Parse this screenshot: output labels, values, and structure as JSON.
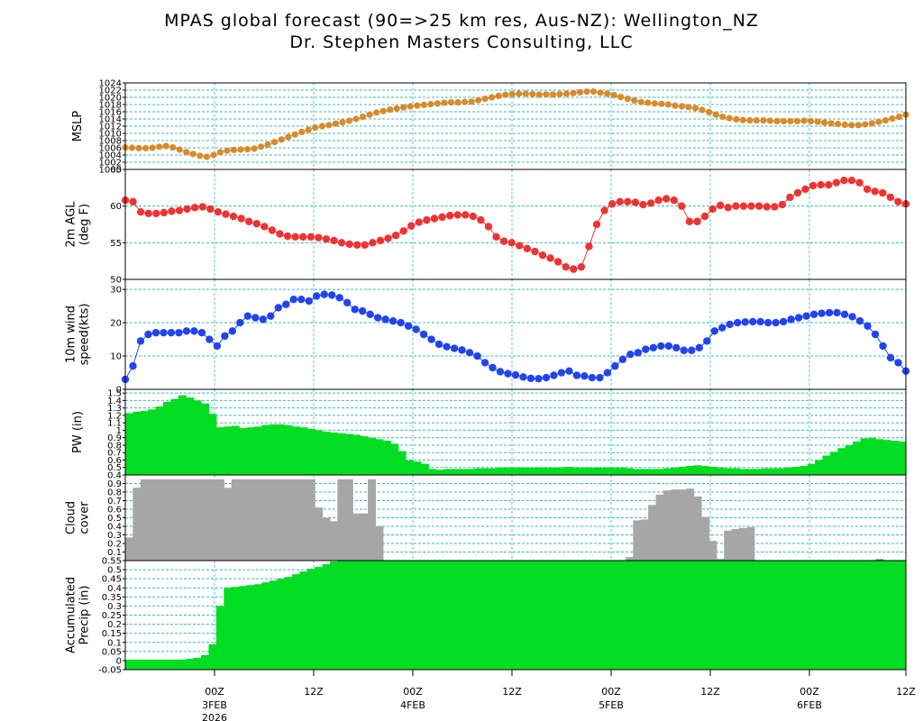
{
  "header": {
    "title": "MPAS global forecast (90=>25 km res, Aus-NZ): Wellington_NZ",
    "subtitle": "Dr. Stephen Masters Consulting, LLC"
  },
  "colors": {
    "mslp": "#d88b2c",
    "temp": "#ee3333",
    "wind": "#2244ee",
    "pw": "#00dd22",
    "cloud": "#a6a6a6",
    "precip": "#00dd22",
    "grid": "#33bbbb"
  },
  "chart_data": [
    {
      "panel": "mslp",
      "type": "line",
      "ylabel": [
        "MSLP"
      ],
      "ylim": [
        1000,
        1024
      ],
      "ticks": [
        "1000",
        "1002",
        "1004",
        "1006",
        "1008",
        "1010",
        "1012",
        "1014",
        "1016",
        "1018",
        "1020",
        "1022",
        "1024"
      ],
      "values": [
        1006.1,
        1006.0,
        1005.9,
        1005.9,
        1006.0,
        1006.3,
        1006.5,
        1006.1,
        1005.5,
        1004.8,
        1004.3,
        1003.8,
        1003.5,
        1004.0,
        1004.8,
        1005.2,
        1005.4,
        1005.5,
        1005.6,
        1005.8,
        1006.3,
        1006.9,
        1007.6,
        1008.3,
        1009.0,
        1009.7,
        1010.4,
        1011.0,
        1011.6,
        1012.0,
        1012.3,
        1012.7,
        1013.1,
        1013.5,
        1014.0,
        1014.6,
        1015.2,
        1015.8,
        1016.2,
        1016.6,
        1016.9,
        1017.2,
        1017.5,
        1017.7,
        1017.9,
        1018.1,
        1018.3,
        1018.5,
        1018.6,
        1018.6,
        1018.7,
        1018.8,
        1019.2,
        1019.6,
        1020.0,
        1020.4,
        1020.7,
        1020.9,
        1021.0,
        1021.0,
        1020.9,
        1020.8,
        1020.8,
        1020.8,
        1020.9,
        1021.0,
        1021.2,
        1021.4,
        1021.6,
        1021.6,
        1021.3,
        1021.0,
        1020.6,
        1020.1,
        1019.6,
        1019.1,
        1018.7,
        1018.5,
        1018.3,
        1018.2,
        1018.0,
        1017.7,
        1017.5,
        1017.3,
        1017.0,
        1016.5,
        1015.9,
        1015.2,
        1014.6,
        1014.2,
        1013.9,
        1013.7,
        1013.6,
        1013.6,
        1013.6,
        1013.5,
        1013.4,
        1013.4,
        1013.4,
        1013.4,
        1013.5,
        1013.4,
        1013.2,
        1013.0,
        1012.8,
        1012.6,
        1012.4,
        1012.3,
        1012.3,
        1012.5,
        1012.8,
        1013.2,
        1013.6,
        1014.1,
        1014.6,
        1015.2
      ]
    },
    {
      "panel": "temp",
      "type": "line",
      "ylabel": [
        "2m AGL",
        "(deg F)"
      ],
      "ylim": [
        50,
        65
      ],
      "ticks": [
        "50",
        "55",
        "60",
        "65"
      ],
      "values": [
        60.8,
        60.6,
        59.2,
        59.0,
        59.0,
        59.1,
        59.3,
        59.4,
        59.6,
        59.8,
        59.9,
        59.6,
        59.2,
        58.9,
        58.6,
        58.3,
        57.9,
        57.6,
        57.2,
        56.7,
        56.2,
        55.9,
        55.8,
        55.8,
        55.8,
        55.7,
        55.5,
        55.3,
        55.0,
        54.8,
        54.7,
        54.7,
        55.0,
        55.3,
        55.6,
        56.0,
        56.6,
        57.3,
        57.8,
        58.1,
        58.3,
        58.5,
        58.7,
        58.8,
        58.8,
        58.6,
        58.1,
        57.2,
        55.8,
        55.2,
        55.0,
        54.6,
        54.2,
        53.8,
        53.3,
        52.9,
        52.4,
        51.7,
        51.4,
        51.7,
        54.5,
        57.5,
        59.4,
        60.3,
        60.6,
        60.6,
        60.5,
        60.2,
        60.4,
        60.8,
        61.0,
        60.8,
        60.0,
        57.9,
        57.9,
        58.6,
        59.6,
        60.1,
        59.8,
        60.0,
        60.0,
        60.0,
        60.0,
        59.9,
        59.9,
        60.2,
        61.2,
        61.8,
        62.3,
        62.8,
        62.9,
        62.9,
        63.2,
        63.5,
        63.5,
        63.2,
        62.3,
        62.0,
        61.8,
        61.2,
        60.6,
        60.3
      ]
    },
    {
      "panel": "wind",
      "type": "line",
      "ylabel": [
        "10m wind",
        "speed(kts)"
      ],
      "ylim": [
        0,
        33
      ],
      "ticks": [
        "0",
        "10",
        "20",
        "30"
      ],
      "values": [
        3.0,
        7.0,
        14.5,
        16.5,
        17.0,
        17.0,
        17.0,
        17.0,
        17.5,
        17.5,
        17.0,
        15.0,
        13.0,
        16.0,
        17.5,
        20.0,
        22.0,
        21.5,
        21.0,
        22.0,
        24.5,
        25.5,
        27.0,
        27.0,
        26.5,
        28.0,
        28.5,
        28.3,
        27.5,
        26.0,
        24.0,
        23.5,
        22.5,
        21.5,
        21.0,
        20.5,
        20.0,
        19.0,
        18.0,
        16.5,
        15.0,
        13.5,
        12.8,
        12.3,
        11.8,
        11.0,
        10.0,
        8.0,
        6.5,
        5.3,
        4.7,
        4.3,
        3.7,
        3.3,
        3.2,
        3.5,
        4.2,
        5.0,
        5.5,
        4.2,
        4.0,
        3.5,
        3.5,
        5.0,
        7.0,
        9.0,
        10.5,
        11.0,
        12.0,
        12.5,
        13.0,
        13.0,
        12.5,
        11.7,
        11.7,
        12.5,
        14.5,
        17.5,
        18.5,
        19.5,
        20.0,
        20.2,
        20.3,
        20.3,
        20.0,
        20.0,
        20.3,
        21.0,
        21.5,
        22.0,
        22.5,
        22.8,
        23.0,
        23.0,
        22.5,
        21.8,
        20.5,
        19.0,
        16.5,
        13.0,
        9.5,
        8.0,
        5.5
      ]
    },
    {
      "panel": "pw",
      "type": "bar",
      "ylabel": [
        "PW (in)"
      ],
      "ylim": [
        0.4,
        1.55
      ],
      "ticks": [
        "0.4",
        "0.5",
        "0.6",
        "0.7",
        "0.8",
        "0.9",
        "1",
        "1.1",
        "1.2",
        "1.3",
        "1.4",
        "1.5"
      ],
      "values": [
        1.23,
        1.25,
        1.26,
        1.28,
        1.32,
        1.38,
        1.42,
        1.47,
        1.44,
        1.4,
        1.36,
        1.22,
        1.04,
        1.05,
        1.06,
        1.03,
        1.04,
        1.05,
        1.07,
        1.08,
        1.08,
        1.07,
        1.05,
        1.04,
        1.02,
        1.0,
        0.98,
        0.97,
        0.96,
        0.95,
        0.94,
        0.92,
        0.9,
        0.88,
        0.86,
        0.82,
        0.72,
        0.6,
        0.58,
        0.55,
        0.48,
        0.47,
        0.48,
        0.48,
        0.48,
        0.48,
        0.49,
        0.49,
        0.49,
        0.5,
        0.5,
        0.5,
        0.5,
        0.5,
        0.5,
        0.5,
        0.5,
        0.5,
        0.51,
        0.5,
        0.5,
        0.5,
        0.5,
        0.5,
        0.5,
        0.5,
        0.49,
        0.48,
        0.48,
        0.48,
        0.48,
        0.49,
        0.5,
        0.51,
        0.52,
        0.53,
        0.52,
        0.51,
        0.5,
        0.49,
        0.49,
        0.48,
        0.48,
        0.48,
        0.49,
        0.49,
        0.49,
        0.5,
        0.51,
        0.52,
        0.55,
        0.6,
        0.66,
        0.71,
        0.76,
        0.8,
        0.85,
        0.89,
        0.9,
        0.88,
        0.87,
        0.86,
        0.85
      ]
    },
    {
      "panel": "cloud",
      "type": "bar",
      "ylabel": [
        "Cloud",
        "cover"
      ],
      "ylim": [
        0,
        1
      ],
      "ticks": [
        "0.1",
        "0.2",
        "0.3",
        "0.4",
        "0.5",
        "0.6",
        "0.7",
        "0.8",
        "0.9"
      ],
      "values": [
        0.27,
        0.85,
        0.95,
        0.95,
        0.95,
        0.95,
        0.95,
        0.95,
        0.95,
        0.95,
        0.95,
        0.95,
        0.95,
        0.85,
        0.95,
        0.95,
        0.95,
        0.95,
        0.95,
        0.95,
        0.95,
        0.95,
        0.95,
        0.95,
        0.95,
        0.62,
        0.5,
        0.46,
        0.95,
        0.95,
        0.55,
        0.55,
        0.95,
        0.4,
        0,
        0,
        0,
        0,
        0,
        0,
        0,
        0,
        0,
        0,
        0,
        0,
        0,
        0,
        0,
        0,
        0,
        0,
        0,
        0,
        0,
        0,
        0,
        0,
        0,
        0,
        0,
        0,
        0,
        0,
        0,
        0,
        0.04,
        0.47,
        0.48,
        0.65,
        0.77,
        0.82,
        0.83,
        0.83,
        0.84,
        0.75,
        0.51,
        0.23,
        0.02,
        0.35,
        0.37,
        0.38,
        0.39,
        0,
        0,
        0,
        0,
        0,
        0,
        0,
        0,
        0,
        0,
        0,
        0,
        0,
        0,
        0,
        0,
        0.02,
        0,
        0,
        0
      ]
    },
    {
      "panel": "precip",
      "type": "area",
      "ylabel": [
        "Accumulated",
        "Precip (in)"
      ],
      "ylim": [
        -0.05,
        0.55
      ],
      "ticks": [
        "-0.05",
        "0",
        "0.05",
        "0.1",
        "0.15",
        "0.2",
        "0.25",
        "0.3",
        "0.35",
        "0.4",
        "0.45",
        "0.5",
        "0.55"
      ],
      "values": [
        0.005,
        0.005,
        0.005,
        0.005,
        0.005,
        0.005,
        0.005,
        0.005,
        0.01,
        0.015,
        0.03,
        0.09,
        0.3,
        0.4,
        0.405,
        0.41,
        0.415,
        0.42,
        0.43,
        0.44,
        0.45,
        0.46,
        0.475,
        0.49,
        0.505,
        0.515,
        0.53,
        0.545,
        0.55,
        0.55,
        0.55,
        0.55,
        0.55,
        0.55,
        0.55,
        0.55,
        0.55,
        0.55,
        0.55,
        0.55,
        0.55,
        0.55,
        0.55,
        0.55,
        0.55,
        0.55,
        0.55,
        0.55,
        0.55,
        0.55,
        0.55,
        0.55,
        0.55,
        0.55,
        0.55,
        0.55,
        0.55,
        0.55,
        0.55,
        0.55,
        0.55,
        0.55,
        0.55,
        0.55,
        0.55,
        0.55,
        0.55,
        0.55,
        0.55,
        0.55,
        0.55,
        0.55,
        0.55,
        0.55,
        0.55,
        0.55,
        0.55,
        0.55,
        0.55,
        0.55,
        0.55,
        0.55,
        0.55,
        0.55,
        0.55,
        0.55,
        0.55,
        0.55,
        0.55,
        0.55,
        0.55,
        0.55,
        0.55,
        0.55,
        0.55,
        0.55,
        0.55,
        0.55,
        0.55,
        0.55,
        0.55,
        0.55,
        0.55
      ]
    }
  ],
  "time_axis": {
    "ticks": [
      {
        "label": "00Z",
        "day": "3FEB",
        "year": "2026"
      },
      {
        "label": "12Z"
      },
      {
        "label": "00Z",
        "day": "4FEB"
      },
      {
        "label": "12Z"
      },
      {
        "label": "00Z",
        "day": "5FEB"
      },
      {
        "label": "12Z"
      },
      {
        "label": "00Z",
        "day": "6FEB"
      },
      {
        "label": "12Z"
      }
    ]
  }
}
